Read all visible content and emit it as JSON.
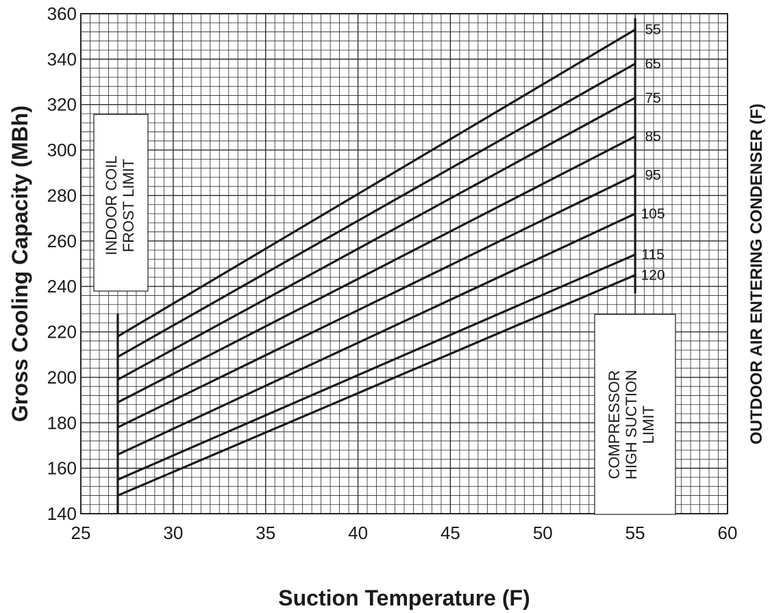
{
  "chart_data": {
    "type": "line",
    "xlabel": "Suction Temperature (F)",
    "ylabel": "Gross Cooling Capacity (MBh)",
    "right_label": "OUTDOOR AIR ENTERING CONDENSER (F)",
    "xlim": [
      25,
      60
    ],
    "ylim": [
      140,
      360
    ],
    "xticks": [
      25,
      30,
      35,
      40,
      45,
      50,
      55,
      60
    ],
    "yticks": [
      140,
      160,
      180,
      200,
      220,
      240,
      260,
      280,
      300,
      320,
      340,
      360
    ],
    "grid": true,
    "minor_grid_x_step": 0.5,
    "minor_grid_y_step": 4,
    "x": [
      27,
      55
    ],
    "series": [
      {
        "name": "55",
        "values": [
          218,
          353
        ]
      },
      {
        "name": "65",
        "values": [
          209,
          338
        ]
      },
      {
        "name": "75",
        "values": [
          199,
          323
        ]
      },
      {
        "name": "85",
        "values": [
          189,
          306
        ]
      },
      {
        "name": "95",
        "values": [
          178,
          289
        ]
      },
      {
        "name": "105",
        "values": [
          166,
          272
        ]
      },
      {
        "name": "115",
        "values": [
          155,
          254
        ]
      },
      {
        "name": "120",
        "values": [
          148,
          245
        ]
      }
    ],
    "annotations": {
      "frost_limit": {
        "x": 27,
        "y_range": [
          140,
          228
        ],
        "lines": [
          "INDOOR COIL",
          "FROST LIMIT"
        ]
      },
      "suction_limit": {
        "x": 55,
        "y_range": [
          237,
          358
        ],
        "lines": [
          "COMPRESSOR",
          "HIGH SUCTION",
          "LIMIT"
        ]
      }
    },
    "colors": {
      "line": "#1a1a1a",
      "grid": "#2a2a2a",
      "background": "#ffffff"
    }
  }
}
